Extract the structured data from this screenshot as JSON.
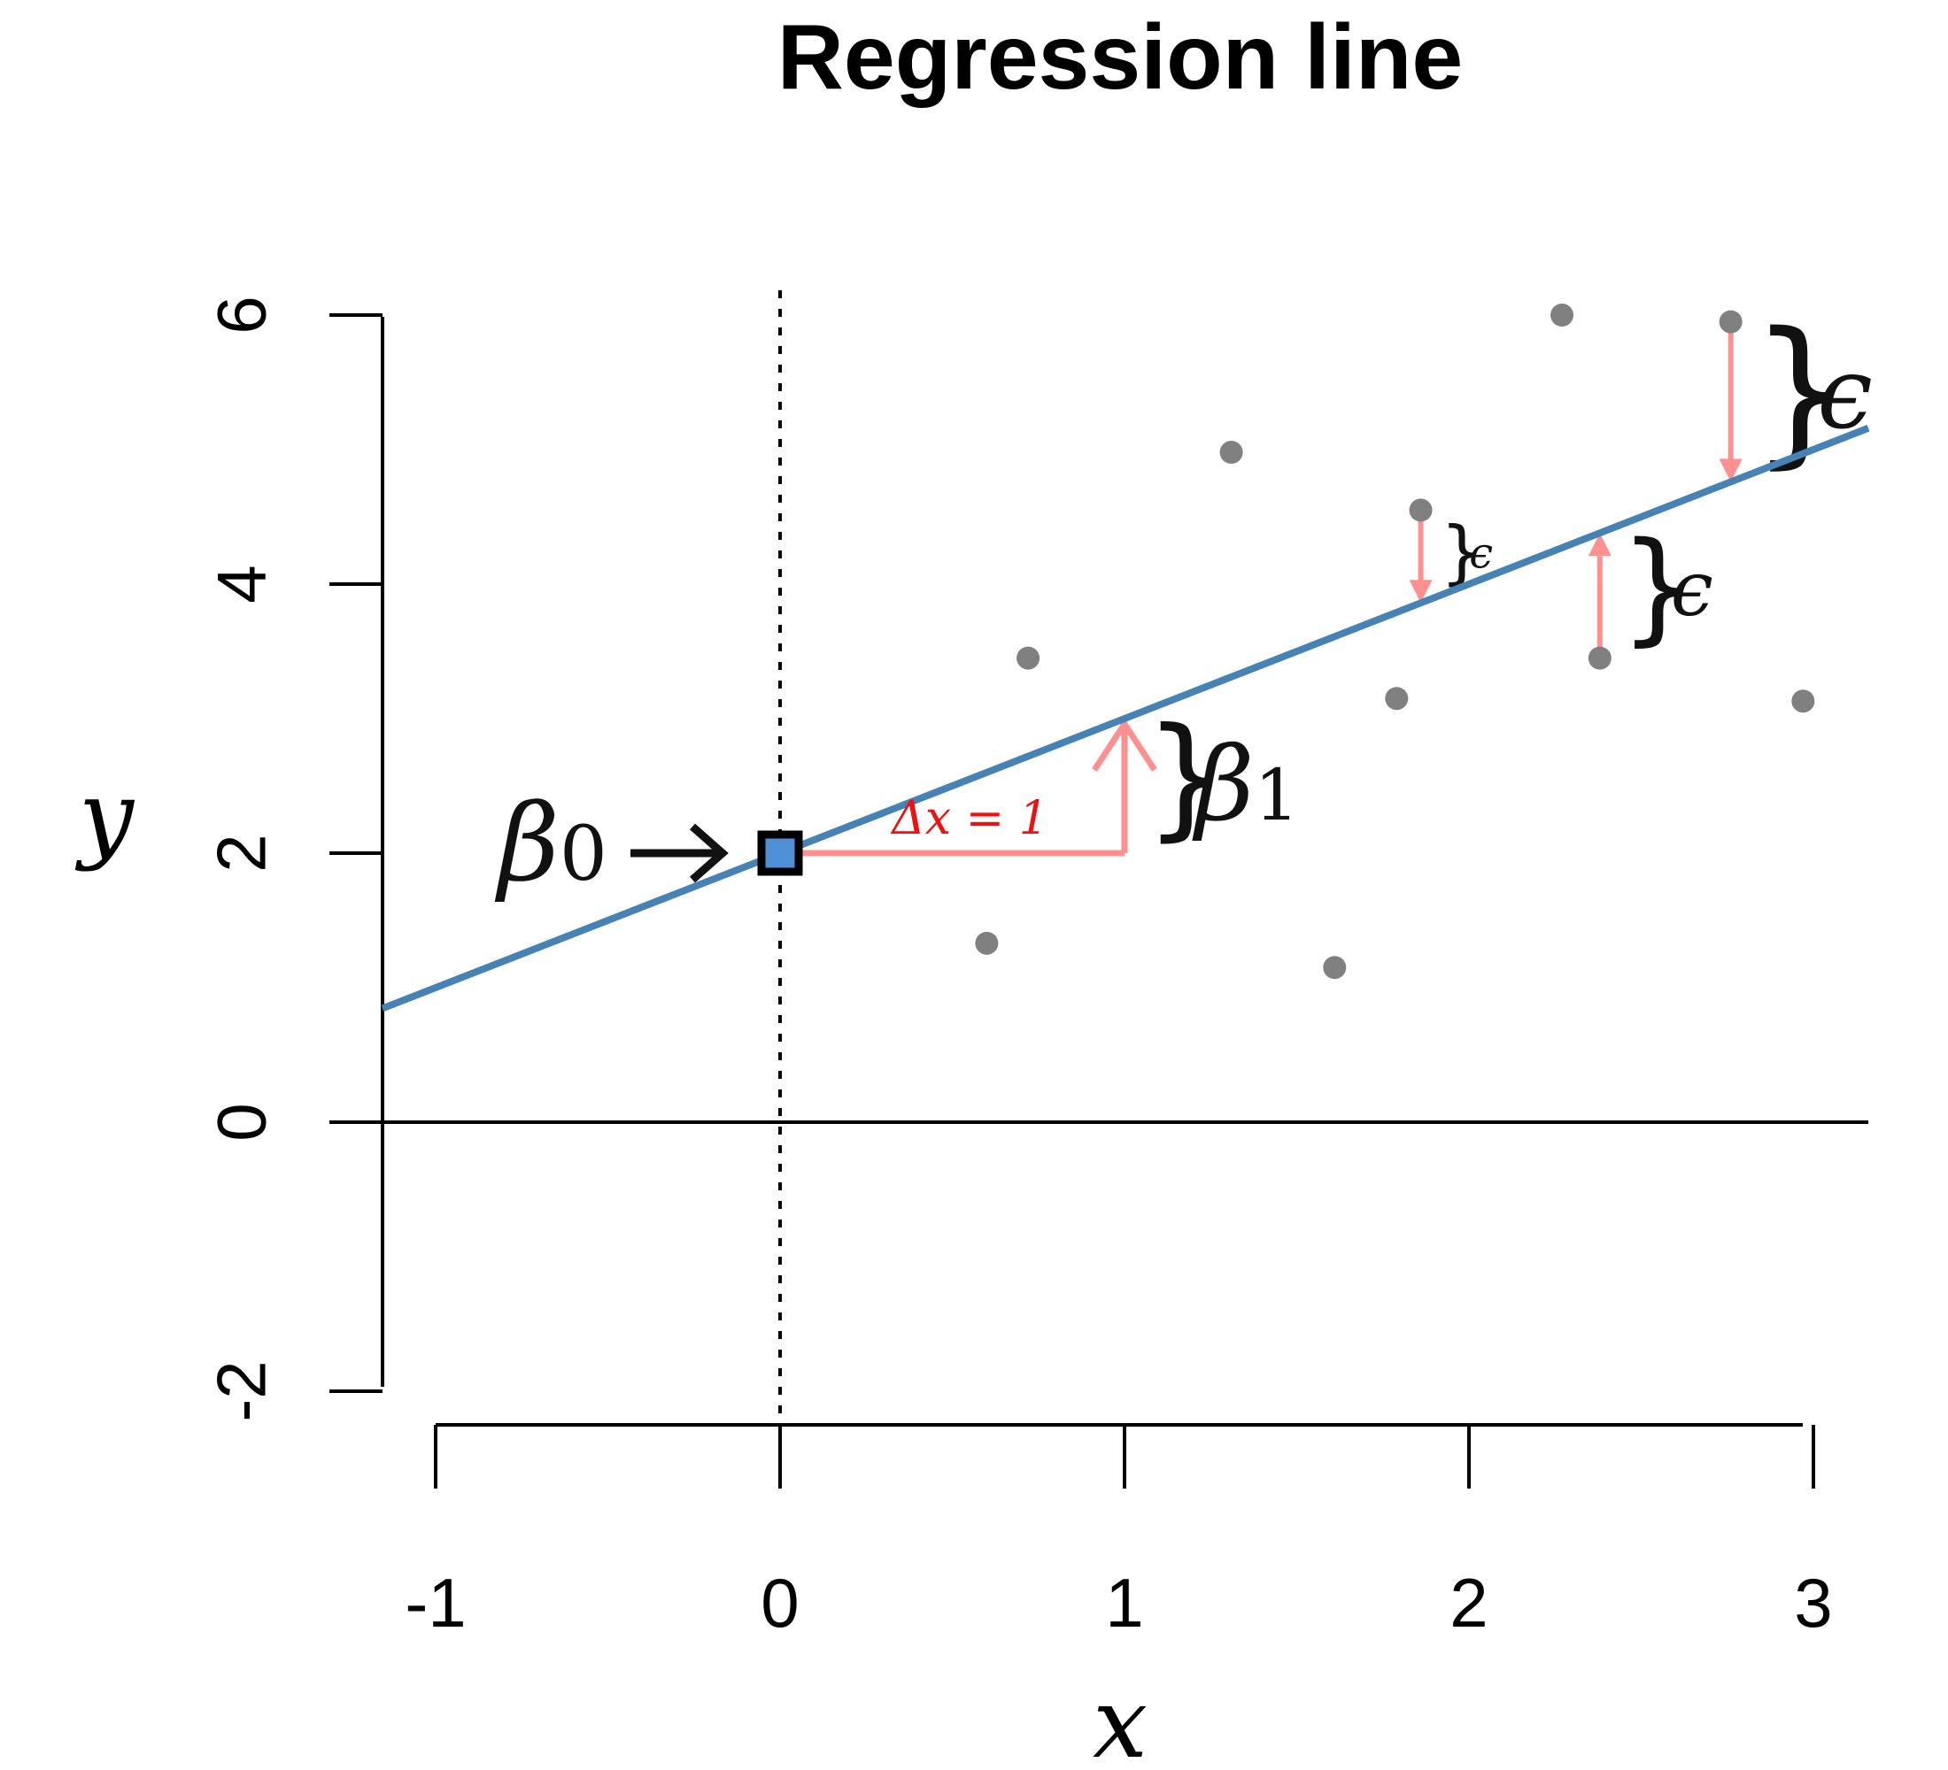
{
  "chart_data": {
    "type": "scatter",
    "title": "Regression line",
    "xlabel": "x",
    "ylabel": "y",
    "xlim": [
      -1,
      3
    ],
    "ylim": [
      -2,
      6
    ],
    "x_ticks": [
      -1,
      0,
      1,
      2,
      3
    ],
    "y_ticks": [
      -2,
      0,
      2,
      4,
      6
    ],
    "regression_line": {
      "intercept": 2.0,
      "slope": 1.0
    },
    "points": [
      {
        "x": 0.6,
        "y": 1.33
      },
      {
        "x": 0.72,
        "y": 3.45
      },
      {
        "x": 1.31,
        "y": 4.98
      },
      {
        "x": 1.61,
        "y": 1.15
      },
      {
        "x": 1.79,
        "y": 3.15
      },
      {
        "x": 1.86,
        "y": 4.55
      },
      {
        "x": 2.27,
        "y": 6.0
      },
      {
        "x": 2.38,
        "y": 3.45
      },
      {
        "x": 2.76,
        "y": 5.95
      },
      {
        "x": 2.97,
        "y": 3.13
      }
    ],
    "residuals": [
      {
        "x": 1.86,
        "y": 4.55,
        "label": "ϵ"
      },
      {
        "x": 2.38,
        "y": 3.45,
        "label": "ϵ"
      },
      {
        "x": 2.76,
        "y": 5.95,
        "label": "ϵ"
      }
    ],
    "annotations": {
      "intercept_label": "β",
      "intercept_sub": "0",
      "slope_label": "β",
      "slope_sub": "1",
      "delta_x_label": "Δx = 1",
      "epsilon": "ϵ"
    },
    "colors": {
      "line": "#4682b4",
      "points": "#808080",
      "residual": "#ff9090",
      "intercept_fill": "#4f8fd6"
    },
    "grid": false
  }
}
